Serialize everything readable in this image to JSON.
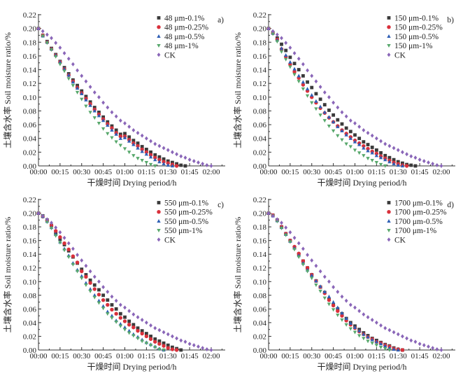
{
  "colors": {
    "s1": "#3a3a3a",
    "s2": "#d9303b",
    "s3": "#2f5fb5",
    "s4": "#58a86c",
    "ck": "#8a66b8"
  },
  "chart_data": [
    {
      "type": "scatter",
      "panel_label": "a)",
      "xlabel": "干燥时间 Drying period/h",
      "ylabel": "土壤含水率 Soil moisture ratio/%",
      "ylim": [
        0,
        0.22
      ],
      "xlim_minutes": [
        0,
        120
      ],
      "xticks": [
        "00:00",
        "00:15",
        "00:30",
        "00:45",
        "01:00",
        "01:15",
        "01:30",
        "01:45",
        "02:00"
      ],
      "yticks": [
        "0.00",
        "0.02",
        "0.04",
        "0.06",
        "0.08",
        "0.10",
        "0.12",
        "0.14",
        "0.16",
        "0.18",
        "0.20",
        "0.22"
      ],
      "x_step_minutes": 3,
      "series": [
        {
          "name": "48 μm-0.1%",
          "marker": "square",
          "values": [
            0.2,
            0.19,
            0.181,
            0.171,
            0.162,
            0.152,
            0.143,
            0.134,
            0.125,
            0.117,
            0.109,
            0.101,
            0.093,
            0.085,
            0.078,
            0.071,
            0.064,
            0.058,
            0.052,
            0.046,
            0.047,
            0.042,
            0.037,
            0.033,
            0.028,
            0.024,
            0.02,
            0.016,
            0.013,
            0.01,
            0.007,
            0.005,
            0.003,
            0.001,
            0.0
          ]
        },
        {
          "name": "48 μm-0.25%",
          "marker": "circle",
          "values": [
            0.2,
            0.19,
            0.18,
            0.17,
            0.161,
            0.151,
            0.141,
            0.132,
            0.123,
            0.114,
            0.106,
            0.098,
            0.09,
            0.082,
            0.075,
            0.068,
            0.061,
            0.055,
            0.048,
            0.043,
            0.043,
            0.038,
            0.033,
            0.029,
            0.024,
            0.02,
            0.016,
            0.012,
            0.009,
            0.006,
            0.004,
            0.002,
            0.0
          ]
        },
        {
          "name": "48 μm-0.5%",
          "marker": "triangle-up",
          "values": [
            0.2,
            0.189,
            0.18,
            0.17,
            0.161,
            0.151,
            0.141,
            0.132,
            0.122,
            0.113,
            0.105,
            0.096,
            0.088,
            0.08,
            0.073,
            0.066,
            0.059,
            0.052,
            0.046,
            0.04,
            0.041,
            0.036,
            0.031,
            0.026,
            0.021,
            0.017,
            0.013,
            0.009,
            0.006,
            0.003,
            0.001,
            0.0
          ]
        },
        {
          "name": "48 μm-1%",
          "marker": "triangle-down",
          "values": [
            0.2,
            0.189,
            0.179,
            0.169,
            0.159,
            0.148,
            0.138,
            0.127,
            0.117,
            0.107,
            0.097,
            0.087,
            0.078,
            0.07,
            0.062,
            0.054,
            0.047,
            0.041,
            0.035,
            0.03,
            0.025,
            0.02,
            0.015,
            0.011,
            0.008,
            0.005,
            0.002,
            0.0
          ]
        },
        {
          "name": "CK",
          "marker": "diamond",
          "values": [
            0.2,
            0.196,
            0.191,
            0.186,
            0.179,
            0.172,
            0.164,
            0.156,
            0.148,
            0.139,
            0.131,
            0.123,
            0.115,
            0.107,
            0.1,
            0.092,
            0.085,
            0.078,
            0.072,
            0.066,
            0.062,
            0.057,
            0.052,
            0.048,
            0.044,
            0.04,
            0.036,
            0.032,
            0.029,
            0.026,
            0.023,
            0.02,
            0.017,
            0.014,
            0.012,
            0.009,
            0.007,
            0.005,
            0.003,
            0.001,
            0.0
          ]
        }
      ]
    },
    {
      "type": "scatter",
      "panel_label": "b)",
      "xlabel": "干燥时间 Drying period/h",
      "ylabel": "土壤含水率 Soil moisture ratio/%",
      "ylim": [
        0,
        0.22
      ],
      "xlim_minutes": [
        0,
        120
      ],
      "xticks": [
        "00:00",
        "00:15",
        "00:30",
        "00:45",
        "01:00",
        "01:15",
        "01:30",
        "01:45",
        "02:00"
      ],
      "yticks": [
        "0.00",
        "0.02",
        "0.04",
        "0.06",
        "0.08",
        "0.10",
        "0.12",
        "0.14",
        "0.16",
        "0.18",
        "0.20",
        "0.22"
      ],
      "x_step_minutes": 3,
      "series": [
        {
          "name": "150 μm-0.1%",
          "marker": "square",
          "values": [
            0.2,
            0.194,
            0.186,
            0.177,
            0.168,
            0.158,
            0.149,
            0.14,
            0.131,
            0.122,
            0.114,
            0.105,
            0.097,
            0.089,
            0.081,
            0.074,
            0.067,
            0.061,
            0.055,
            0.05,
            0.045,
            0.04,
            0.035,
            0.031,
            0.027,
            0.023,
            0.019,
            0.015,
            0.012,
            0.009,
            0.006,
            0.004,
            0.002,
            0.001,
            0.0
          ]
        },
        {
          "name": "150 μm-0.25%",
          "marker": "circle",
          "values": [
            0.2,
            0.193,
            0.184,
            0.17,
            0.159,
            0.148,
            0.137,
            0.128,
            0.118,
            0.109,
            0.1,
            0.092,
            0.084,
            0.077,
            0.07,
            0.064,
            0.058,
            0.052,
            0.047,
            0.042,
            0.037,
            0.033,
            0.029,
            0.025,
            0.021,
            0.018,
            0.014,
            0.011,
            0.008,
            0.005,
            0.003,
            0.001,
            0.0
          ]
        },
        {
          "name": "150 μm-0.5%",
          "marker": "triangle-up",
          "values": [
            0.2,
            0.193,
            0.183,
            0.171,
            0.161,
            0.151,
            0.141,
            0.131,
            0.122,
            0.112,
            0.103,
            0.094,
            0.086,
            0.078,
            0.071,
            0.064,
            0.057,
            0.051,
            0.045,
            0.04,
            0.035,
            0.031,
            0.026,
            0.022,
            0.019,
            0.015,
            0.012,
            0.009,
            0.006,
            0.003,
            0.001,
            0.0
          ]
        },
        {
          "name": "150 μm-1%",
          "marker": "triangle-down",
          "values": [
            0.2,
            0.192,
            0.181,
            0.166,
            0.155,
            0.144,
            0.133,
            0.123,
            0.112,
            0.102,
            0.092,
            0.083,
            0.074,
            0.066,
            0.058,
            0.051,
            0.044,
            0.038,
            0.032,
            0.028,
            0.023,
            0.019,
            0.015,
            0.011,
            0.008,
            0.005,
            0.002,
            0.0
          ]
        },
        {
          "name": "CK",
          "marker": "diamond",
          "values": [
            0.2,
            0.196,
            0.191,
            0.186,
            0.179,
            0.172,
            0.164,
            0.156,
            0.148,
            0.139,
            0.131,
            0.123,
            0.115,
            0.107,
            0.1,
            0.092,
            0.085,
            0.078,
            0.072,
            0.066,
            0.062,
            0.057,
            0.052,
            0.048,
            0.044,
            0.04,
            0.036,
            0.032,
            0.029,
            0.026,
            0.023,
            0.02,
            0.017,
            0.014,
            0.012,
            0.009,
            0.007,
            0.005,
            0.003,
            0.001,
            0.0
          ]
        }
      ]
    },
    {
      "type": "scatter",
      "panel_label": "c)",
      "xlabel": "干燥时间 Drying period/h",
      "ylabel": "土壤含水率 Soil moisture ratio/%",
      "ylim": [
        0,
        0.22
      ],
      "xlim_minutes": [
        0,
        120
      ],
      "xticks": [
        "00:00",
        "00:15",
        "00:30",
        "00:45",
        "01:00",
        "01:15",
        "01:30",
        "01:45",
        "02:00"
      ],
      "yticks": [
        "0.00",
        "0.02",
        "0.04",
        "0.06",
        "0.08",
        "0.10",
        "0.12",
        "0.14",
        "0.16",
        "0.18",
        "0.20",
        "0.22"
      ],
      "x_step_minutes": 3,
      "series": [
        {
          "name": "550 μm-0.1%",
          "marker": "square",
          "values": [
            0.2,
            0.196,
            0.19,
            0.182,
            0.17,
            0.162,
            0.154,
            0.145,
            0.136,
            0.127,
            0.118,
            0.11,
            0.102,
            0.095,
            0.088,
            0.08,
            0.073,
            0.066,
            0.06,
            0.053,
            0.048,
            0.042,
            0.037,
            0.032,
            0.028,
            0.024,
            0.02,
            0.016,
            0.013,
            0.01,
            0.007,
            0.004,
            0.002,
            0.0
          ]
        },
        {
          "name": "550 μm-0.25%",
          "marker": "circle",
          "values": [
            0.2,
            0.195,
            0.189,
            0.182,
            0.174,
            0.165,
            0.156,
            0.147,
            0.137,
            0.128,
            0.115,
            0.107,
            0.098,
            0.089,
            0.081,
            0.073,
            0.066,
            0.059,
            0.053,
            0.047,
            0.042,
            0.037,
            0.033,
            0.028,
            0.024,
            0.02,
            0.016,
            0.012,
            0.009,
            0.006,
            0.003,
            0.001,
            0.0
          ]
        },
        {
          "name": "550 μm-0.5%",
          "marker": "triangle-up",
          "values": [
            0.2,
            0.195,
            0.188,
            0.179,
            0.169,
            0.158,
            0.148,
            0.138,
            0.127,
            0.117,
            0.108,
            0.098,
            0.089,
            0.08,
            0.072,
            0.064,
            0.056,
            0.05,
            0.043,
            0.038,
            0.033,
            0.028,
            0.023,
            0.019,
            0.015,
            0.011,
            0.008,
            0.005,
            0.002,
            0.0
          ]
        },
        {
          "name": "550 μm-1%",
          "marker": "triangle-down",
          "values": [
            0.2,
            0.195,
            0.187,
            0.178,
            0.167,
            0.157,
            0.146,
            0.136,
            0.125,
            0.115,
            0.105,
            0.095,
            0.086,
            0.077,
            0.069,
            0.061,
            0.053,
            0.047,
            0.041,
            0.035,
            0.03,
            0.025,
            0.021,
            0.017,
            0.013,
            0.01,
            0.007,
            0.004,
            0.001,
            0.0
          ]
        },
        {
          "name": "CK",
          "marker": "diamond",
          "values": [
            0.2,
            0.196,
            0.191,
            0.186,
            0.179,
            0.172,
            0.164,
            0.156,
            0.148,
            0.139,
            0.131,
            0.123,
            0.115,
            0.107,
            0.1,
            0.092,
            0.085,
            0.078,
            0.072,
            0.066,
            0.062,
            0.057,
            0.052,
            0.048,
            0.044,
            0.04,
            0.036,
            0.032,
            0.029,
            0.026,
            0.023,
            0.02,
            0.017,
            0.014,
            0.012,
            0.009,
            0.007,
            0.005,
            0.003,
            0.001,
            0.0
          ]
        }
      ]
    },
    {
      "type": "scatter",
      "panel_label": "d)",
      "xlabel": "干燥时间 Drying period/h",
      "ylabel": "土壤含水率 Soil moisture ratio/%",
      "ylim": [
        0,
        0.22
      ],
      "xlim_minutes": [
        0,
        120
      ],
      "xticks": [
        "00:00",
        "00:15",
        "00:30",
        "00:45",
        "01:00",
        "01:15",
        "01:30",
        "01:45",
        "02:00"
      ],
      "yticks": [
        "0.00",
        "0.02",
        "0.04",
        "0.06",
        "0.08",
        "0.10",
        "0.12",
        "0.14",
        "0.16",
        "0.18",
        "0.20",
        "0.22"
      ],
      "x_step_minutes": 3,
      "series": [
        {
          "name": "1700 μm-0.1%",
          "marker": "square",
          "values": [
            0.2,
            0.197,
            0.19,
            0.18,
            0.17,
            0.16,
            0.15,
            0.14,
            0.13,
            0.12,
            0.11,
            0.101,
            0.092,
            0.084,
            0.074,
            0.066,
            0.06,
            0.053,
            0.046,
            0.04,
            0.035,
            0.03,
            0.025,
            0.021,
            0.017,
            0.014,
            0.011,
            0.008,
            0.006,
            0.003,
            0.001,
            0.0
          ]
        },
        {
          "name": "1700 μm-0.25%",
          "marker": "circle",
          "values": [
            0.2,
            0.197,
            0.19,
            0.18,
            0.17,
            0.16,
            0.151,
            0.141,
            0.13,
            0.12,
            0.11,
            0.101,
            0.092,
            0.083,
            0.073,
            0.065,
            0.057,
            0.05,
            0.043,
            0.037,
            0.032,
            0.027,
            0.023,
            0.019,
            0.016,
            0.012,
            0.01,
            0.007,
            0.005,
            0.002,
            0.001,
            0.0
          ]
        },
        {
          "name": "1700 μm-0.5%",
          "marker": "triangle-up",
          "values": [
            0.2,
            0.196,
            0.189,
            0.179,
            0.169,
            0.159,
            0.149,
            0.138,
            0.127,
            0.117,
            0.109,
            0.101,
            0.093,
            0.085,
            0.078,
            0.07,
            0.062,
            0.054,
            0.046,
            0.039,
            0.033,
            0.028,
            0.023,
            0.019,
            0.015,
            0.012,
            0.009,
            0.006,
            0.003,
            0.001,
            0.0
          ]
        },
        {
          "name": "1700 μm-1%",
          "marker": "triangle-down",
          "values": [
            0.2,
            0.196,
            0.188,
            0.178,
            0.168,
            0.158,
            0.147,
            0.136,
            0.125,
            0.115,
            0.105,
            0.095,
            0.086,
            0.076,
            0.067,
            0.059,
            0.051,
            0.044,
            0.037,
            0.031,
            0.026,
            0.021,
            0.017,
            0.013,
            0.01,
            0.007,
            0.004,
            0.002,
            0.0
          ]
        },
        {
          "name": "CK",
          "marker": "diamond",
          "values": [
            0.2,
            0.196,
            0.191,
            0.186,
            0.179,
            0.172,
            0.164,
            0.156,
            0.148,
            0.139,
            0.131,
            0.123,
            0.115,
            0.107,
            0.1,
            0.092,
            0.085,
            0.078,
            0.072,
            0.066,
            0.062,
            0.057,
            0.052,
            0.048,
            0.044,
            0.04,
            0.036,
            0.032,
            0.029,
            0.026,
            0.023,
            0.02,
            0.017,
            0.014,
            0.012,
            0.009,
            0.007,
            0.005,
            0.003,
            0.001,
            0.0
          ]
        }
      ]
    }
  ]
}
